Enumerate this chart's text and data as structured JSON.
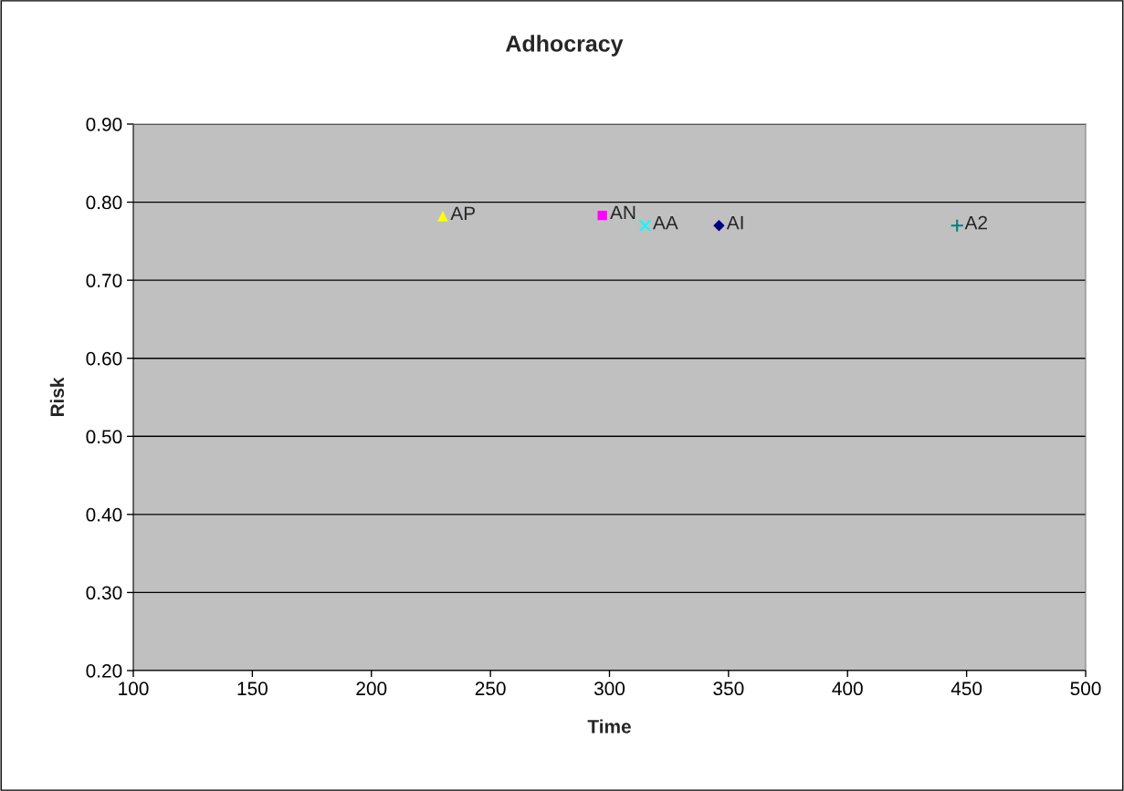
{
  "chart_data": {
    "type": "scatter",
    "title": "Adhocracy",
    "xlabel": "Time",
    "ylabel": "Risk",
    "xlim": [
      100,
      500
    ],
    "xticks": [
      100,
      150,
      200,
      250,
      300,
      350,
      400,
      450,
      500
    ],
    "ylim": [
      0.2,
      0.9
    ],
    "yticks": [
      {
        "value": 0.2,
        "label": "0.20"
      },
      {
        "value": 0.3,
        "label": "0.30"
      },
      {
        "value": 0.4,
        "label": "0.40"
      },
      {
        "value": 0.5,
        "label": "0.50"
      },
      {
        "value": 0.6,
        "label": "0.60"
      },
      {
        "value": 0.7,
        "label": "0.70"
      },
      {
        "value": 0.8,
        "label": "0.80"
      },
      {
        "value": 0.9,
        "label": "0.90"
      }
    ],
    "grid": "y",
    "legend": false,
    "series": [
      {
        "name": "AP",
        "color": "#ffff00",
        "marker": "triangle",
        "x": [
          230
        ],
        "values": [
          0.782
        ]
      },
      {
        "name": "AN",
        "color": "#ff00ff",
        "marker": "square",
        "x": [
          297
        ],
        "values": [
          0.783
        ]
      },
      {
        "name": "AA",
        "color": "#00ffff",
        "marker": "x",
        "x": [
          315
        ],
        "values": [
          0.77
        ]
      },
      {
        "name": "AI",
        "color": "#000080",
        "marker": "diamond",
        "x": [
          346
        ],
        "values": [
          0.77
        ]
      },
      {
        "name": "A2",
        "color": "#008080",
        "marker": "cross",
        "x": [
          446
        ],
        "values": [
          0.77
        ]
      }
    ]
  }
}
